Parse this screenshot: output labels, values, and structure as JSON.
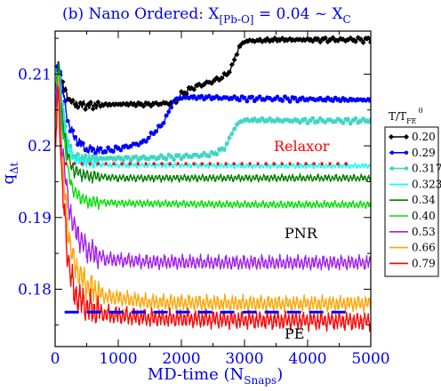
{
  "chart_data": {
    "type": "line",
    "title": {
      "prefix": "(b)   Nano Ordered:  X",
      "sub1": "[Pb-O]",
      "middle": " = 0.04 ~ X",
      "sub2": "C"
    },
    "ylabel": {
      "main": "q",
      "sub": "Δt"
    },
    "xlabel": {
      "main": "MD-time (N",
      "sub": "Snaps",
      "end": ")"
    },
    "xlim": [
      0,
      5000
    ],
    "ylim": [
      0.172,
      0.216
    ],
    "xticks": [
      0,
      1000,
      2000,
      3000,
      4000,
      5000
    ],
    "yticks": [
      0.18,
      0.19,
      0.2,
      0.21
    ],
    "xtick_labels": [
      "0",
      "1000",
      "2000",
      "3000",
      "4000",
      "5000"
    ],
    "ytick_labels": [
      "0.18",
      "0.19",
      "0.2",
      "0.21"
    ],
    "legend": {
      "title_main": "T/T",
      "title_sub": "FE",
      "title_sup": "0",
      "placement": "right"
    },
    "annotations": {
      "relaxor": "Relaxor",
      "pnr": "PNR",
      "pe": "PE"
    },
    "reference_lines": [
      {
        "name": "relaxor-line",
        "y": 0.1975,
        "color": "#ff0000",
        "style": "dotted"
      },
      {
        "name": "pe-line",
        "y": 0.1768,
        "color": "#0000ff",
        "style": "dashed"
      }
    ],
    "series": [
      {
        "name": "0.20",
        "color": "#000000",
        "marker": "diamond",
        "points": [
          [
            0,
            0.204
          ],
          [
            30,
            0.211
          ],
          [
            60,
            0.2115
          ],
          [
            100,
            0.209
          ],
          [
            200,
            0.2068
          ],
          [
            300,
            0.2058
          ],
          [
            500,
            0.2056
          ],
          [
            1000,
            0.2058
          ],
          [
            1500,
            0.2058
          ],
          [
            1900,
            0.206
          ],
          [
            2000,
            0.2072
          ],
          [
            2200,
            0.2082
          ],
          [
            2500,
            0.209
          ],
          [
            2700,
            0.2098
          ],
          [
            2800,
            0.211
          ],
          [
            2900,
            0.2135
          ],
          [
            3000,
            0.2146
          ],
          [
            3500,
            0.2148
          ],
          [
            4000,
            0.2148
          ],
          [
            5000,
            0.2148
          ]
        ],
        "noise": 0.0004
      },
      {
        "name": "0.29",
        "color": "#0000ff",
        "marker": "circle",
        "points": [
          [
            0,
            0.205
          ],
          [
            30,
            0.21
          ],
          [
            60,
            0.212
          ],
          [
            100,
            0.209
          ],
          [
            200,
            0.2035
          ],
          [
            300,
            0.2012
          ],
          [
            500,
            0.1995
          ],
          [
            800,
            0.1993
          ],
          [
            1100,
            0.1998
          ],
          [
            1400,
            0.2005
          ],
          [
            1700,
            0.203
          ],
          [
            1900,
            0.2065
          ],
          [
            2100,
            0.2068
          ],
          [
            3000,
            0.2066
          ],
          [
            4000,
            0.2065
          ],
          [
            5000,
            0.2064
          ]
        ],
        "noise": 0.0004
      },
      {
        "name": "0.317",
        "color": "#3fd6c4",
        "marker": "circle",
        "points": [
          [
            0,
            0.203
          ],
          [
            30,
            0.2095
          ],
          [
            60,
            0.2115
          ],
          [
            100,
            0.207
          ],
          [
            200,
            0.2005
          ],
          [
            300,
            0.1985
          ],
          [
            500,
            0.1982
          ],
          [
            1500,
            0.1983
          ],
          [
            2000,
            0.1985
          ],
          [
            2500,
            0.1988
          ],
          [
            2700,
            0.1998
          ],
          [
            2800,
            0.2018
          ],
          [
            2900,
            0.2032
          ],
          [
            3000,
            0.2036
          ],
          [
            4000,
            0.2035
          ],
          [
            5000,
            0.2035
          ]
        ],
        "noise": 0.0004
      },
      {
        "name": "0.323",
        "color": "#00ffff",
        "marker": "none",
        "points": [
          [
            0,
            0.204
          ],
          [
            30,
            0.21
          ],
          [
            60,
            0.2115
          ],
          [
            100,
            0.206
          ],
          [
            200,
            0.1995
          ],
          [
            300,
            0.198
          ],
          [
            500,
            0.1975
          ],
          [
            1000,
            0.1973
          ],
          [
            2000,
            0.1973
          ],
          [
            3000,
            0.1972
          ],
          [
            4000,
            0.1972
          ],
          [
            5000,
            0.1972
          ]
        ],
        "noise": 0.0004
      },
      {
        "name": "0.34",
        "color": "#007d00",
        "marker": "none",
        "points": [
          [
            0,
            0.203
          ],
          [
            30,
            0.209
          ],
          [
            60,
            0.211
          ],
          [
            100,
            0.205
          ],
          [
            200,
            0.1985
          ],
          [
            300,
            0.1965
          ],
          [
            500,
            0.1958
          ],
          [
            1000,
            0.1955
          ],
          [
            3000,
            0.1955
          ],
          [
            5000,
            0.1955
          ]
        ],
        "noise": 0.0006
      },
      {
        "name": "0.40",
        "color": "#00e000",
        "marker": "none",
        "points": [
          [
            0,
            0.202
          ],
          [
            30,
            0.2085
          ],
          [
            60,
            0.2105
          ],
          [
            100,
            0.204
          ],
          [
            200,
            0.1965
          ],
          [
            300,
            0.1935
          ],
          [
            500,
            0.1922
          ],
          [
            1000,
            0.192
          ],
          [
            3000,
            0.1918
          ],
          [
            5000,
            0.1918
          ]
        ],
        "noise": 0.0006
      },
      {
        "name": "0.53",
        "color": "#a020f0",
        "marker": "none",
        "points": [
          [
            0,
            0.201
          ],
          [
            30,
            0.2075
          ],
          [
            60,
            0.2095
          ],
          [
            100,
            0.201
          ],
          [
            200,
            0.1925
          ],
          [
            300,
            0.1885
          ],
          [
            500,
            0.1855
          ],
          [
            800,
            0.1842
          ],
          [
            1500,
            0.1838
          ],
          [
            3000,
            0.1837
          ],
          [
            5000,
            0.1837
          ]
        ],
        "noise": 0.0012
      },
      {
        "name": "0.66",
        "color": "#ffa500",
        "marker": "none",
        "points": [
          [
            0,
            0.2
          ],
          [
            30,
            0.2065
          ],
          [
            60,
            0.2085
          ],
          [
            100,
            0.199
          ],
          [
            200,
            0.1885
          ],
          [
            300,
            0.1835
          ],
          [
            500,
            0.1805
          ],
          [
            800,
            0.179
          ],
          [
            1500,
            0.1782
          ],
          [
            3000,
            0.178
          ],
          [
            5000,
            0.178
          ]
        ],
        "noise": 0.0013
      },
      {
        "name": "0.79",
        "color": "#ff0000",
        "marker": "none",
        "points": [
          [
            0,
            0.199
          ],
          [
            30,
            0.2055
          ],
          [
            60,
            0.2075
          ],
          [
            100,
            0.196
          ],
          [
            200,
            0.1845
          ],
          [
            300,
            0.1795
          ],
          [
            500,
            0.1775
          ],
          [
            800,
            0.1765
          ],
          [
            1500,
            0.176
          ],
          [
            3000,
            0.1757
          ],
          [
            5000,
            0.1755
          ]
        ],
        "noise": 0.0015
      }
    ]
  }
}
